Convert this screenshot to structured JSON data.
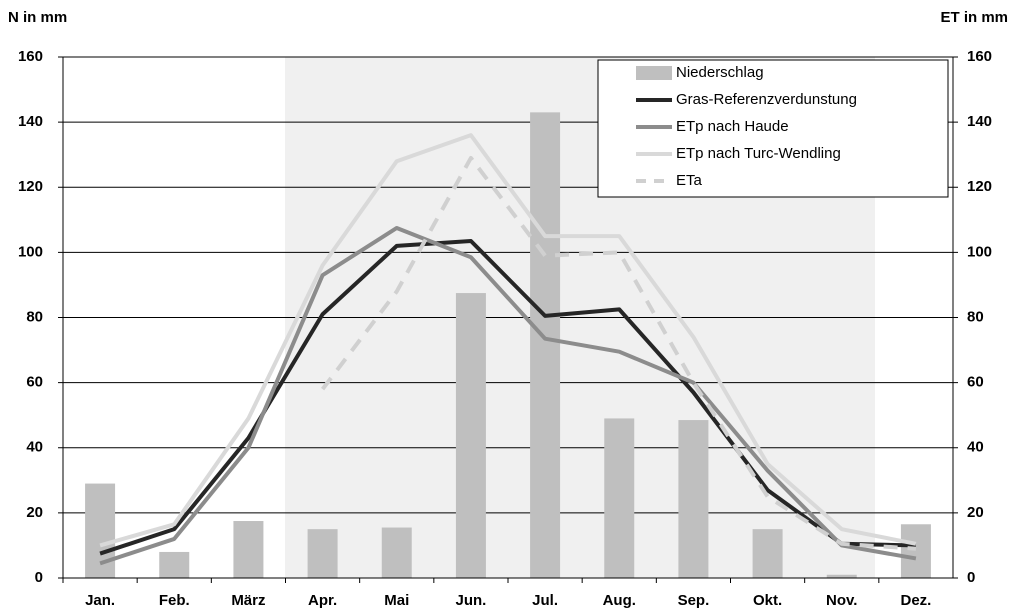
{
  "chart_data": {
    "type": "bar-line",
    "y_label": "N in mm",
    "y2_label": "ET in mm",
    "categories": [
      "Jan.",
      "Feb.",
      "März",
      "Apr.",
      "Mai",
      "Jun.",
      "Jul.",
      "Aug.",
      "Sep.",
      "Okt.",
      "Nov.",
      "Dez."
    ],
    "ylim": [
      0,
      160
    ],
    "yticks": [
      0,
      20,
      40,
      60,
      80,
      100,
      120,
      140,
      160
    ],
    "y2lim": [
      0,
      160
    ],
    "y2ticks": [
      0,
      20,
      40,
      60,
      80,
      100,
      120,
      140,
      160
    ],
    "grid": true,
    "legend": "top-right",
    "series": [
      {
        "name": "Niederschlag",
        "kind": "bar",
        "color": "#bfbfbf",
        "values": [
          29,
          8,
          17.5,
          15,
          15.5,
          87.5,
          143,
          49,
          48.5,
          15,
          1,
          16.5
        ]
      },
      {
        "name": "Gras-Referenzverdunstung",
        "kind": "line",
        "axis": "y2",
        "color": "#262626",
        "values": [
          7.5,
          15,
          43,
          81,
          102,
          103.5,
          80.5,
          82.5,
          57,
          27,
          10.5,
          10
        ]
      },
      {
        "name": "ETp nach Haude",
        "kind": "line",
        "axis": "y2",
        "color": "#8c8c8c",
        "values": [
          4.5,
          12,
          40,
          93,
          107.5,
          98.5,
          73.5,
          69.5,
          60,
          33,
          10,
          6
        ]
      },
      {
        "name": "ETp nach Turc-Wendling",
        "kind": "line",
        "axis": "y2",
        "color": "#d9d9d9",
        "values": [
          10,
          16.5,
          49,
          96,
          128,
          136,
          105,
          105,
          74,
          35,
          15,
          10.5
        ]
      },
      {
        "name": "ETa",
        "kind": "line",
        "dashed": true,
        "axis": "y2",
        "color": "#d0d0d0",
        "values": [
          null,
          null,
          null,
          58,
          88,
          129,
          99,
          100,
          60,
          25,
          10.5,
          9
        ]
      }
    ]
  }
}
